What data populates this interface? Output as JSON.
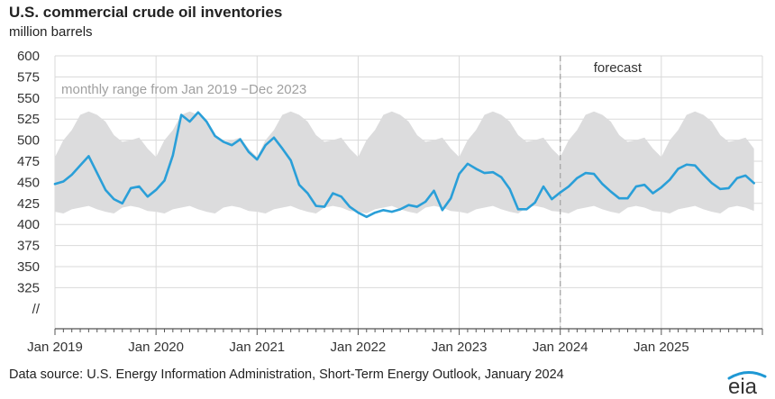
{
  "title": "U.S. commercial crude oil inventories",
  "subtitle": "million barrels",
  "source": "Data source: U.S. Energy Information Administration, Short-Term Energy Outlook, January 2024",
  "logo_text": "eia",
  "colors": {
    "line": "#2a9fd8",
    "band": "#dcdcdd",
    "grid": "#d9d9d9",
    "forecast_line": "#a6a6a6",
    "logo_blue": "#1f98d4"
  },
  "chart_data": {
    "type": "line",
    "title": "U.S. commercial crude oil inventories",
    "ylabel": "million barrels",
    "ylim": [
      300,
      600
    ],
    "y_ticks": [
      "600",
      "575",
      "550",
      "525",
      "500",
      "475",
      "450",
      "425",
      "400",
      "375",
      "350",
      "325",
      "//"
    ],
    "y_break_label": "//",
    "x_ticks": [
      "Jan 2019",
      "Jan 2020",
      "Jan 2021",
      "Jan 2022",
      "Jan 2023",
      "Jan 2024",
      "Jan 2025"
    ],
    "x_start": "2019-01",
    "x_end": "2025-12",
    "grid": true,
    "band_label": "monthly range from Jan 2019 −Dec 2023",
    "forecast_label": "forecast",
    "forecast_start": "2024-01",
    "band": {
      "months": [
        "Jan",
        "Feb",
        "Mar",
        "Apr",
        "May",
        "Jun",
        "Jul",
        "Aug",
        "Sep",
        "Oct",
        "Nov",
        "Dec"
      ],
      "min": [
        415,
        413,
        418,
        420,
        422,
        418,
        415,
        413,
        420,
        422,
        420,
        416
      ],
      "max": [
        480,
        500,
        512,
        530,
        534,
        530,
        522,
        506,
        498,
        500,
        503,
        490
      ]
    },
    "series": [
      {
        "values": [
          448,
          451,
          459,
          470,
          481,
          461,
          441,
          430,
          425,
          443,
          445,
          433,
          441,
          452,
          482,
          530,
          522,
          533,
          522,
          505,
          498,
          494,
          501,
          486,
          477,
          494,
          503,
          490,
          476,
          447,
          437,
          422,
          421,
          437,
          433,
          421,
          414,
          409,
          414,
          417,
          415,
          418,
          423,
          421,
          427,
          440,
          417,
          431,
          460,
          472,
          466,
          461,
          462,
          456,
          442,
          418,
          418,
          426,
          445,
          430,
          438,
          445,
          455,
          461,
          460,
          448,
          439,
          431,
          431,
          445,
          447,
          437,
          444,
          453,
          466,
          471,
          470,
          459,
          449,
          442,
          443,
          455,
          458,
          449
        ]
      }
    ]
  }
}
